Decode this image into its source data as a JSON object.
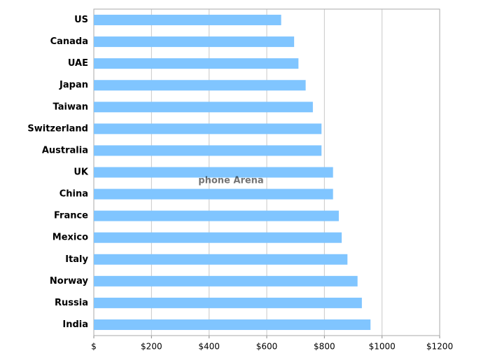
{
  "chart_data": {
    "type": "barh",
    "categories": [
      "US",
      "Canada",
      "UAE",
      "Japan",
      "Taiwan",
      "Switzerland",
      "Australia",
      "UK",
      "China",
      "France",
      "Mexico",
      "Italy",
      "Norway",
      "Russia",
      "India"
    ],
    "values": [
      650,
      695,
      710,
      735,
      760,
      790,
      790,
      830,
      830,
      850,
      860,
      880,
      915,
      930,
      960
    ],
    "color": "#80c5ff",
    "xlim": [
      0,
      1200
    ],
    "xticks": [
      {
        "value": 0,
        "label": "$"
      },
      {
        "value": 200,
        "label": "$200"
      },
      {
        "value": 400,
        "label": "$400"
      },
      {
        "value": 600,
        "label": "$600"
      },
      {
        "value": 800,
        "label": "$800"
      },
      {
        "value": 1000,
        "label": "$1000"
      },
      {
        "value": 1200,
        "label": "$1200"
      }
    ],
    "grid": true,
    "watermark": "phone Arena"
  }
}
